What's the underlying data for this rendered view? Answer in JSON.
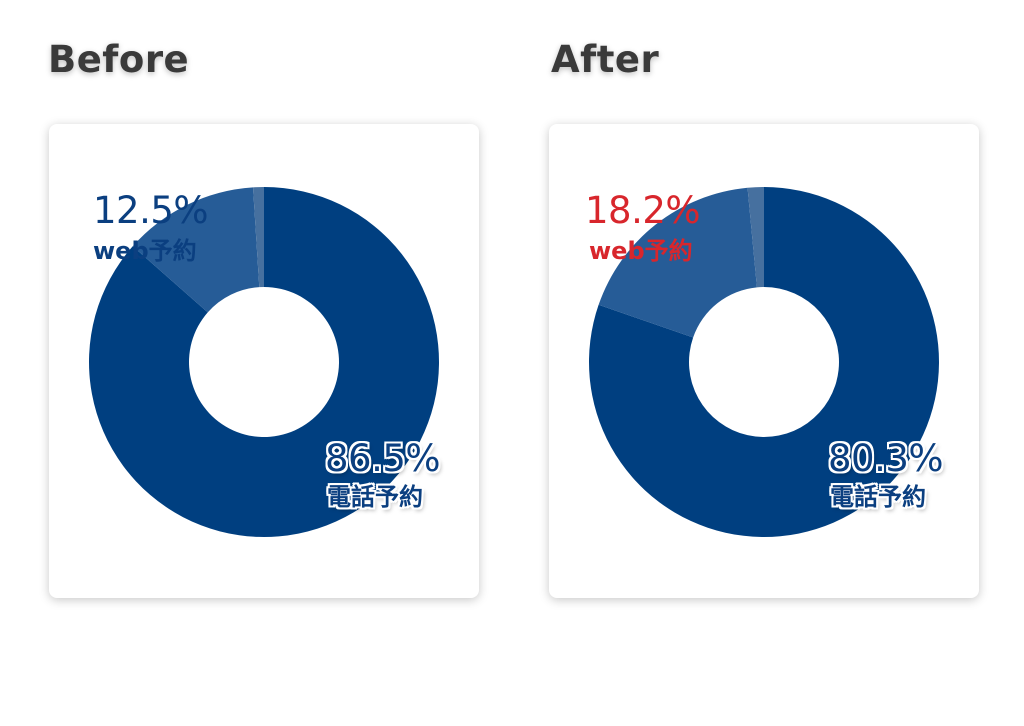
{
  "chart_data": [
    {
      "type": "pie",
      "title": "Before",
      "slices": [
        {
          "label": "web予約",
          "value": 12.5,
          "value_text": "12.5%",
          "color": "#265c97"
        },
        {
          "label": "電話予約",
          "value": 86.5,
          "value_text": "86.5%",
          "color": "#003f80"
        },
        {
          "label": "",
          "value": 1.0,
          "color": "#46709f"
        }
      ],
      "colors": {
        "small_label": "#0b3f80",
        "big_label": "#0b3f80"
      }
    },
    {
      "type": "pie",
      "title": "After",
      "slices": [
        {
          "label": "web予約",
          "value": 18.2,
          "value_text": "18.2%",
          "color": "#265c97"
        },
        {
          "label": "電話予約",
          "value": 80.3,
          "value_text": "80.3%",
          "color": "#003f80"
        },
        {
          "label": "",
          "value": 1.5,
          "color": "#46709f"
        }
      ],
      "colors": {
        "small_label": "#d8262c",
        "big_label": "#0b3f80"
      }
    }
  ]
}
